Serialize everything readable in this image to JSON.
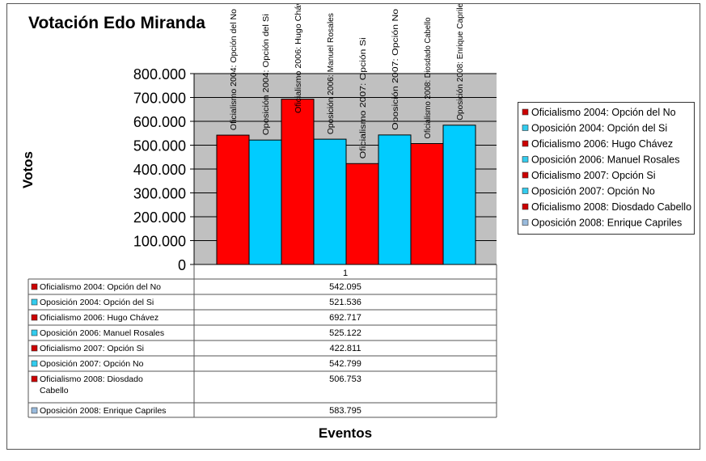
{
  "chart_data": {
    "type": "bar",
    "title": "Votación Edo Miranda",
    "xlabel": "Eventos",
    "ylabel": "Votos",
    "categories": [
      "1"
    ],
    "ylim": [
      0,
      800000
    ],
    "yticks": [
      "0",
      "100.000",
      "200.000",
      "300.000",
      "400.000",
      "500.000",
      "600.000",
      "700.000",
      "800.000"
    ],
    "grid": true,
    "legend_position": "right",
    "data_table": true,
    "series": [
      {
        "name": "Oficialismo 2004: Opción del No",
        "values": [
          542095
        ],
        "label": "542.095",
        "color": "#ff0000",
        "swatch": "#cc0000"
      },
      {
        "name": "Oposición 2004:  Opción del Si",
        "values": [
          521536
        ],
        "label": "521.536",
        "color": "#00ccff",
        "swatch": "#33ccee"
      },
      {
        "name": "Oficialismo 2006: Hugo Chávez",
        "values": [
          692717
        ],
        "label": "692.717",
        "color": "#ff0000",
        "swatch": "#cc0000"
      },
      {
        "name": "Oposición 2006:  Manuel  Rosales",
        "values": [
          525122
        ],
        "label": "525.122",
        "color": "#00ccff",
        "swatch": "#33ccee"
      },
      {
        "name": "Oficialismo 2007: Opción Si",
        "values": [
          422811
        ],
        "label": "422.811",
        "color": "#ff0000",
        "swatch": "#cc0000"
      },
      {
        "name": "Oposición 2007:  Opción No",
        "values": [
          542799
        ],
        "label": "542.799",
        "color": "#00ccff",
        "swatch": "#33ccee"
      },
      {
        "name": "Oficialismo 2008: Diosdado Cabello",
        "values": [
          506753
        ],
        "label": "506.753",
        "color": "#ff0000",
        "swatch": "#cc0000"
      },
      {
        "name": "Oposición 2008: Enrique Capriles",
        "values": [
          583795
        ],
        "label": "583.795",
        "color": "#00ccff",
        "swatch": "#99bbdd"
      }
    ],
    "plot_background": "#c0c0c0"
  }
}
